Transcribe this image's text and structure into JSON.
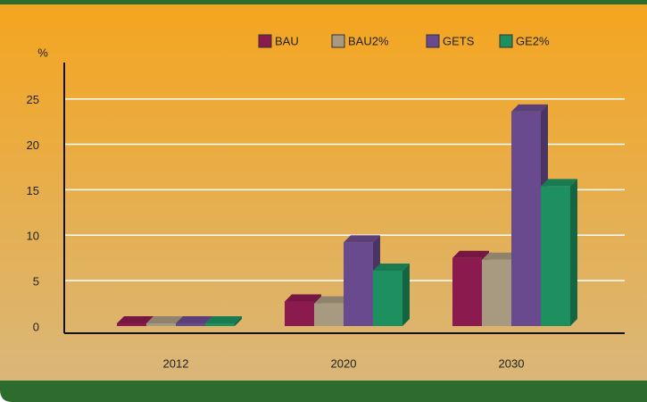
{
  "chart_data": {
    "type": "bar3d",
    "y_label": "%",
    "categories": [
      "2012",
      "2020",
      "2030"
    ],
    "series": [
      {
        "name": "BAU",
        "color": "#8b1a4e",
        "values": [
          0.3,
          2.7,
          7.5
        ]
      },
      {
        "name": "BAU2%",
        "color": "#a89a80",
        "values": [
          0.3,
          2.5,
          7.3
        ]
      },
      {
        "name": "GETS",
        "color": "#6a4a8e",
        "values": [
          0.3,
          9.2,
          23.6
        ]
      },
      {
        "name": "GE2%",
        "color": "#1e9060",
        "values": [
          0.3,
          6.1,
          15.4
        ]
      }
    ],
    "ylim": [
      0,
      29
    ],
    "yticks": [
      0,
      5,
      10,
      15,
      20,
      25
    ],
    "grid": true,
    "legend": "top"
  }
}
